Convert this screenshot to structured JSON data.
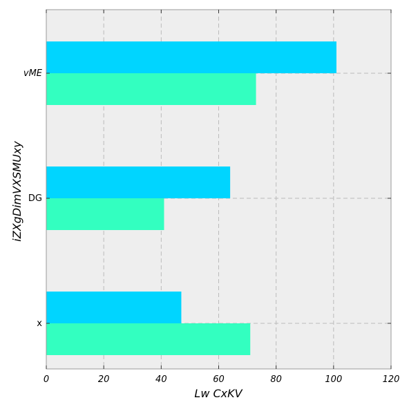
{
  "chart_data": {
    "type": "bar",
    "orientation": "horizontal",
    "xlabel": "Lw  CxKV",
    "ylabel": "iZXgDimVXSMUxy",
    "categories": [
      "x",
      "DG",
      "vME"
    ],
    "series": [
      {
        "values": [
          47,
          64,
          101
        ],
        "color": "#00d5ff"
      },
      {
        "values": [
          71,
          41,
          73
        ],
        "color": "#33ffc0"
      }
    ],
    "xlim": [
      0,
      120
    ],
    "xticks": [
      0,
      20,
      40,
      60,
      80,
      100,
      120
    ],
    "grid": true,
    "grid_style": "dashed",
    "background_color": "#eeeeee",
    "legend": "none"
  }
}
